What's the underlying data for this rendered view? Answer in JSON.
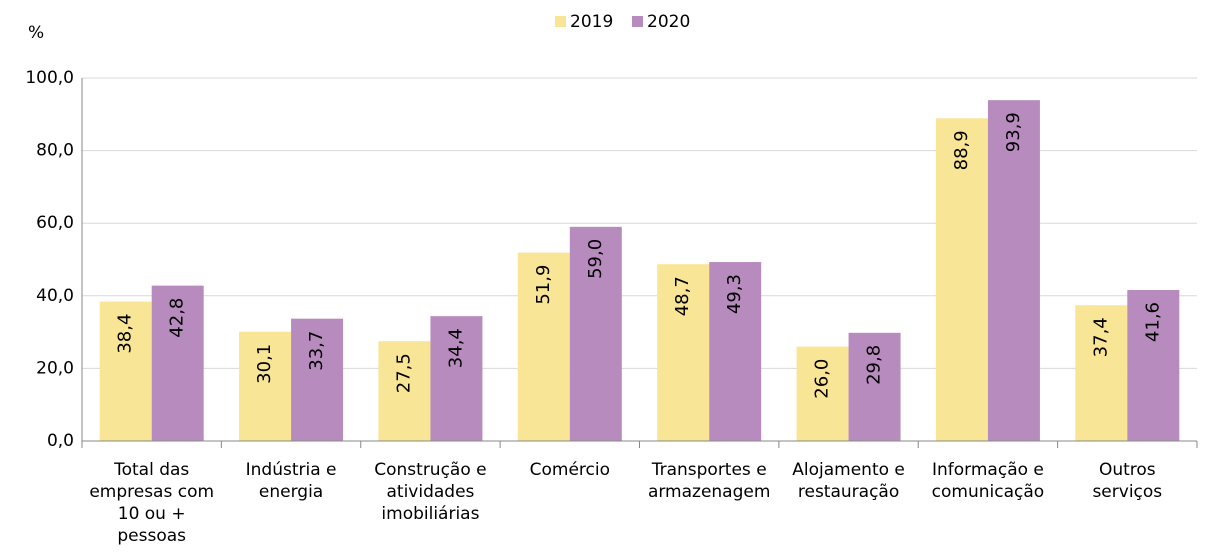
{
  "chart_data": {
    "type": "bar",
    "y_label": "%",
    "categories": [
      "Total das\nempresas com\n10 ou +\npessoas",
      "Indústria e\nenergia",
      "Construção e\natividades\nimobiliárias",
      "Comércio",
      "Transportes e\narmazenagem",
      "Alojamento e\nrestauração",
      "Informação e\ncomunicação",
      "Outros\nserviços"
    ],
    "series": [
      {
        "name": "2019",
        "color": "#f8e595",
        "values": [
          38.4,
          30.1,
          27.5,
          51.9,
          48.7,
          26.0,
          88.9,
          37.4
        ],
        "value_labels": [
          "38,4",
          "30,1",
          "27,5",
          "51,9",
          "48,7",
          "26,0",
          "88,9",
          "37,4"
        ]
      },
      {
        "name": "2020",
        "color": "#b88bbf",
        "values": [
          42.8,
          33.7,
          34.4,
          59.0,
          49.3,
          29.8,
          93.9,
          41.6
        ],
        "value_labels": [
          "42,8",
          "33,7",
          "34,4",
          "59,0",
          "49,3",
          "29,8",
          "93,9",
          "41,6"
        ]
      }
    ],
    "ylim": [
      0,
      100
    ],
    "yticks": [
      {
        "value": 0,
        "label": "0,0"
      },
      {
        "value": 20,
        "label": "20,0"
      },
      {
        "value": 40,
        "label": "40,0"
      },
      {
        "value": 60,
        "label": "60,0"
      },
      {
        "value": 80,
        "label": "80,0"
      },
      {
        "value": 100,
        "label": "100,0"
      }
    ],
    "grid": true,
    "legend": "top"
  }
}
